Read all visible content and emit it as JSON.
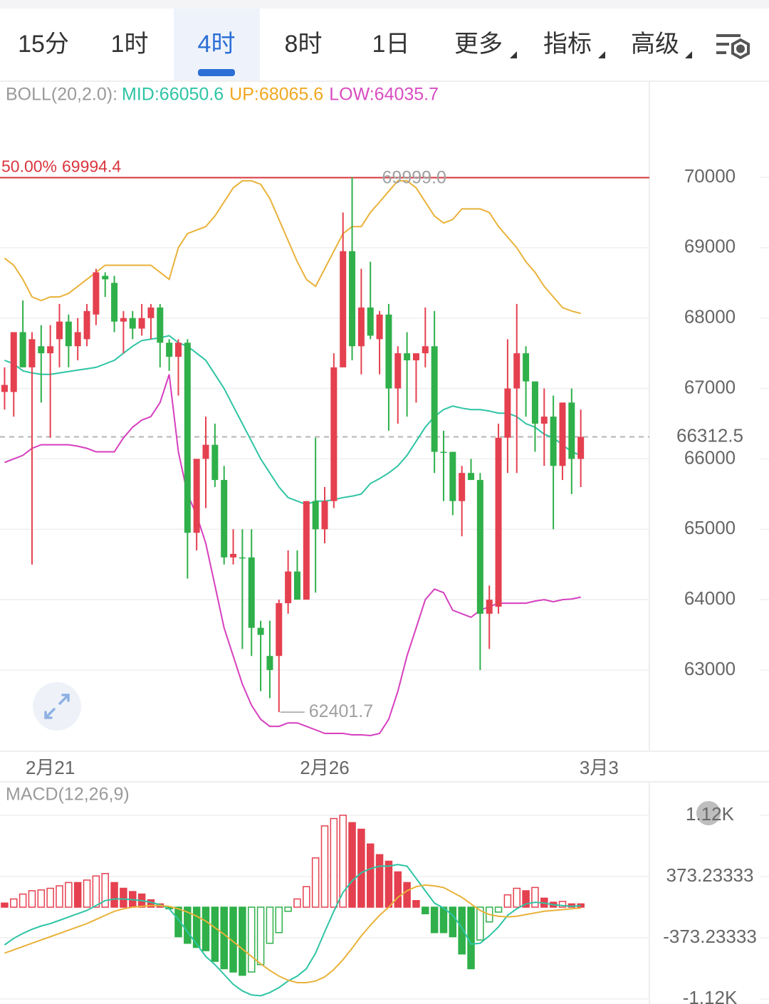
{
  "tabs": {
    "items": [
      "15分",
      "1时",
      "4时",
      "8时",
      "1日",
      "更多",
      "指标",
      "高级"
    ],
    "active": 2
  },
  "chart_data": [
    {
      "type": "candlestick",
      "indicator_label": "BOLL(20,2.0):",
      "ylim": [
        61847,
        71355
      ],
      "yticks": [
        63000,
        64000,
        65000,
        66000,
        67000,
        68000,
        69000,
        70000
      ],
      "xlim": [
        -0.5,
        70.5
      ],
      "xticks": [
        {
          "value": 5,
          "label": "2月21"
        },
        {
          "value": 35,
          "label": "2月26"
        },
        {
          "value": 65,
          "label": "3月3"
        }
      ],
      "up_color": "#e5404f",
      "down_color": "#2fb04a",
      "candles": {
        "open": [
          66950,
          66950,
          67800,
          67300,
          67600,
          67500,
          67700,
          67950,
          67600,
          67700,
          68050,
          68600,
          68500,
          67950,
          68000,
          67850,
          68000,
          68150,
          67650,
          67450,
          67650,
          64950,
          66000,
          66200,
          65700,
          64600,
          64600,
          64600,
          63600,
          63200,
          63200,
          63950,
          64400,
          64000,
          65400,
          65000,
          65400,
          67300,
          68950,
          67600,
          68150,
          67700,
          68050,
          67000,
          67500,
          67400,
          67500,
          67600,
          66100,
          66100,
          65400,
          65800,
          65700,
          63800,
          63900,
          66300,
          67000,
          67500,
          67100,
          66500,
          66600,
          65900,
          66800,
          66000
        ],
        "high": [
          67300,
          67800,
          68250,
          67800,
          67900,
          67900,
          68200,
          68050,
          68000,
          68200,
          68700,
          68650,
          68600,
          68100,
          68100,
          68200,
          68200,
          68200,
          67700,
          67700,
          67700,
          66000,
          66600,
          66500,
          65900,
          65000,
          65000,
          65000,
          63700,
          63700,
          64000,
          64700,
          64700,
          65400,
          66300,
          65600,
          67500,
          69500,
          69999,
          68700,
          68800,
          68100,
          68200,
          67600,
          67800,
          67500,
          68150,
          68100,
          66400,
          66100,
          65900,
          66000,
          65800,
          64200,
          66500,
          67700,
          68200,
          67600,
          67100,
          67000,
          66900,
          66800,
          67000,
          66700
        ],
        "low": [
          66700,
          66600,
          67300,
          64500,
          66800,
          66300,
          67300,
          67300,
          67400,
          67600,
          67900,
          68300,
          67800,
          67500,
          67700,
          67750,
          67700,
          67300,
          67250,
          66900,
          64300,
          64700,
          65300,
          65600,
          64500,
          64500,
          63300,
          63200,
          62700,
          62600,
          62401.7,
          63800,
          64000,
          64000,
          64100,
          64800,
          65300,
          67300,
          67400,
          67200,
          67700,
          67200,
          66400,
          66500,
          66600,
          66800,
          67300,
          65800,
          65400,
          65200,
          64900,
          65700,
          63000,
          63300,
          63800,
          65800,
          65800,
          66600,
          66100,
          65900,
          65000,
          65700,
          65500,
          65600
        ],
        "close": [
          67050,
          67800,
          67300,
          67700,
          67500,
          67600,
          67950,
          67600,
          67800,
          68100,
          68650,
          68550,
          67950,
          68000,
          67850,
          68000,
          68150,
          67650,
          67450,
          67650,
          64950,
          66000,
          66200,
          65700,
          64600,
          64650,
          64600,
          63600,
          63500,
          63000,
          63950,
          64400,
          64000,
          65400,
          65000,
          65400,
          67300,
          68950,
          67600,
          68150,
          67750,
          68050,
          67000,
          67500,
          67400,
          67500,
          67600,
          66100,
          66100,
          65400,
          65800,
          65700,
          63800,
          64000,
          66300,
          67000,
          67500,
          67100,
          66500,
          66600,
          65900,
          66800,
          66000,
          66312.5
        ]
      },
      "series": [
        {
          "name": "MID:66050.6",
          "color": "#2ec4a4",
          "legend_color": "#2ec4a4",
          "values": [
            67400,
            67350,
            67250,
            67220,
            67200,
            67200,
            67220,
            67240,
            67260,
            67280,
            67300,
            67350,
            67400,
            67500,
            67600,
            67680,
            67700,
            67720,
            67750,
            67650,
            67600,
            67500,
            67400,
            67200,
            67000,
            66750,
            66500,
            66250,
            66000,
            65800,
            65600,
            65450,
            65400,
            65350,
            65400,
            65400,
            65420,
            65450,
            65470,
            65500,
            65650,
            65720,
            65800,
            65900,
            66050,
            66250,
            66450,
            66600,
            66700,
            66750,
            66720,
            66700,
            66700,
            66680,
            66650,
            66650,
            66600,
            66500,
            66450,
            66350,
            66300,
            66200,
            66100,
            66050.6
          ]
        },
        {
          "name": "UP:68065.6",
          "color": "#e9b23a",
          "legend_color": "#f0a820",
          "values": [
            68850,
            68750,
            68550,
            68300,
            68250,
            68300,
            68300,
            68350,
            68450,
            68550,
            68650,
            68750,
            68750,
            68750,
            68750,
            68750,
            68750,
            68650,
            68550,
            69000,
            69200,
            69250,
            69300,
            69450,
            69650,
            69850,
            69950,
            69950,
            69900,
            69700,
            69400,
            69100,
            68800,
            68550,
            68450,
            68700,
            68950,
            69200,
            69300,
            69300,
            69500,
            69650,
            69800,
            69950,
            69950,
            69850,
            69650,
            69450,
            69350,
            69400,
            69550,
            69550,
            69550,
            69500,
            69300,
            69150,
            69000,
            68800,
            68650,
            68450,
            68300,
            68150,
            68100,
            68065.6
          ]
        },
        {
          "name": "LOW:64035.7",
          "color": "#d63fbf",
          "legend_color": "#d84cc2",
          "values": [
            65950,
            66000,
            66050,
            66150,
            66200,
            66200,
            66200,
            66200,
            66180,
            66150,
            66100,
            66100,
            66100,
            66300,
            66450,
            66550,
            66600,
            66800,
            67200,
            66100,
            65500,
            65200,
            64800,
            64200,
            63600,
            63200,
            62800,
            62500,
            62300,
            62200,
            62200,
            62250,
            62250,
            62200,
            62150,
            62100,
            62100,
            62100,
            62080,
            62080,
            62070,
            62100,
            62300,
            62700,
            63200,
            63600,
            64000,
            64150,
            64100,
            63850,
            63800,
            63750,
            63850,
            63900,
            63950,
            63950,
            63950,
            63950,
            63980,
            64000,
            63970,
            64000,
            64010,
            64035.7
          ]
        }
      ],
      "level_line": {
        "ratio_label": "50.00%",
        "price": 69994.4,
        "color": "#d9363e"
      },
      "last_price": 66312.5,
      "high_label": {
        "value": 69999,
        "label": "69999.0"
      },
      "low_label": 62401.7
    },
    {
      "type": "macd",
      "title": "MACD(12,26,9)",
      "ylim": [
        -1180,
        1510
      ],
      "yticks": [
        {
          "value": -1119.7,
          "label": "-1.12K"
        },
        -373.23333,
        373.23333,
        {
          "value": 1119.7,
          "label": "1.12K"
        }
      ],
      "xlim": [
        -0.5,
        70.5
      ],
      "histogram": {
        "up_color": "#e5404f",
        "down_color": "#2fb04a",
        "values": [
          50,
          100,
          160,
          200,
          210,
          230,
          260,
          300,
          300,
          330,
          380,
          410,
          300,
          230,
          190,
          160,
          90,
          40,
          -20,
          -360,
          -440,
          -490,
          -530,
          -660,
          -750,
          -790,
          -830,
          -790,
          -700,
          -440,
          -310,
          -50,
          100,
          250,
          600,
          990,
          1080,
          1120,
          1030,
          950,
          770,
          640,
          560,
          430,
          300,
          80,
          -80,
          -310,
          -310,
          -360,
          -570,
          -750,
          -400,
          -180,
          -60,
          150,
          230,
          200,
          240,
          110,
          60,
          70,
          40,
          40
        ]
      },
      "series": [
        {
          "color": "#2ec4a4",
          "values": [
            -460,
            -380,
            -320,
            -270,
            -230,
            -200,
            -160,
            -120,
            -80,
            -40,
            20,
            80,
            100,
            100,
            90,
            80,
            60,
            30,
            -20,
            -150,
            -300,
            -450,
            -600,
            -700,
            -820,
            -940,
            -1020,
            -1070,
            -1080,
            -1040,
            -980,
            -900,
            -840,
            -750,
            -560,
            -300,
            -50,
            180,
            320,
            420,
            470,
            500,
            500,
            520,
            500,
            350,
            200,
            50,
            -10,
            -100,
            -250,
            -450,
            -440,
            -350,
            -240,
            -100,
            -20,
            40,
            60,
            50,
            30,
            20,
            10,
            20
          ]
        },
        {
          "color": "#e9b23a",
          "values": [
            -560,
            -520,
            -480,
            -440,
            -400,
            -360,
            -320,
            -280,
            -240,
            -200,
            -150,
            -100,
            -50,
            -20,
            0,
            10,
            20,
            20,
            10,
            -20,
            -60,
            -110,
            -170,
            -250,
            -330,
            -420,
            -510,
            -600,
            -690,
            -770,
            -840,
            -890,
            -920,
            -920,
            -900,
            -850,
            -760,
            -640,
            -500,
            -350,
            -220,
            -100,
            0,
            120,
            200,
            250,
            270,
            260,
            240,
            180,
            120,
            40,
            -40,
            -90,
            -110,
            -120,
            -110,
            -90,
            -70,
            -50,
            -40,
            -30,
            -20,
            -10
          ]
        }
      ]
    }
  ]
}
